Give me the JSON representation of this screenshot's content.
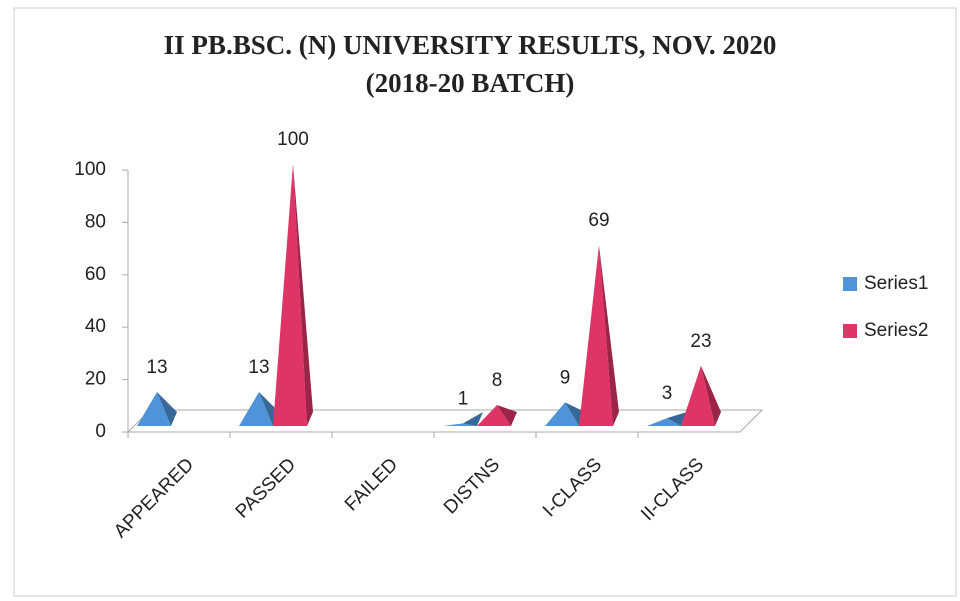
{
  "chart_data": {
    "type": "pyramid3d",
    "title": [
      "II PB.BSC. (N) UNIVERSITY RESULTS, NOV. 2020",
      "(2018-20 BATCH)"
    ],
    "categories": [
      "APPEARED",
      "PASSED",
      "FAILED",
      "DISTNS",
      "I-CLASS",
      "II-CLASS"
    ],
    "series": [
      {
        "name": "Series1",
        "color": "#4f94d8",
        "values": [
          13,
          13,
          null,
          1,
          9,
          3
        ]
      },
      {
        "name": "Series2",
        "color": "#de3466",
        "values": [
          null,
          100,
          null,
          8,
          69,
          23
        ]
      }
    ],
    "ylim": [
      0,
      100
    ],
    "yticks": [
      0,
      20,
      40,
      60,
      80,
      100
    ],
    "legend": "right"
  }
}
